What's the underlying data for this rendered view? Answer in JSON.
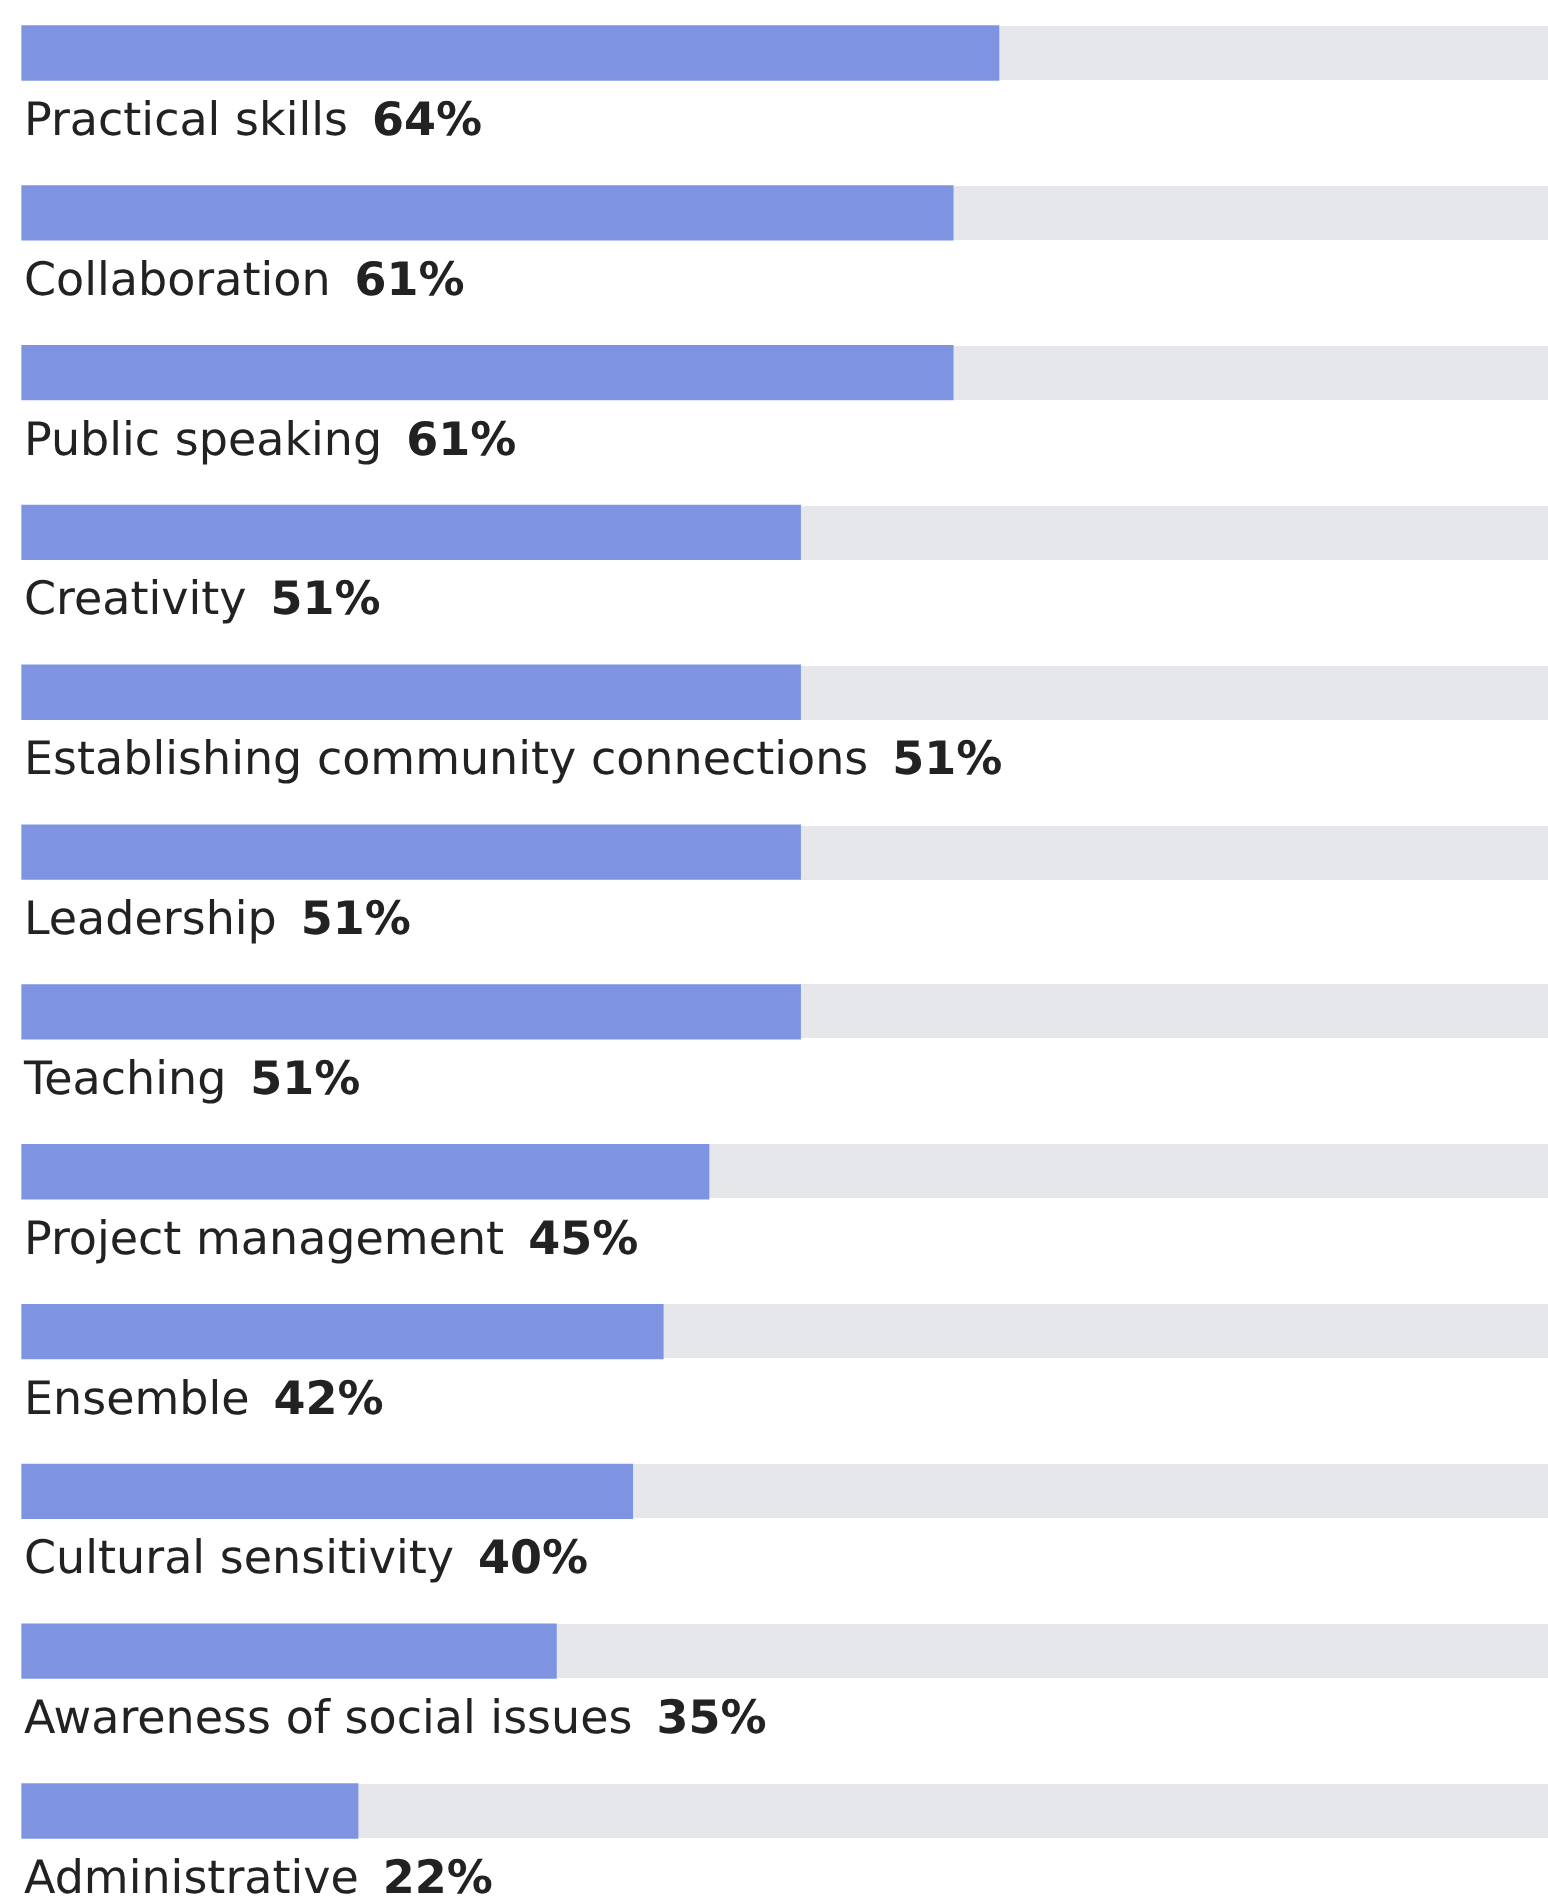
{
  "chart_data": {
    "type": "bar",
    "orientation": "horizontal",
    "categories": [
      "Practical skills",
      "Collaboration",
      "Public speaking",
      "Creativity",
      "Establishing community connections",
      "Leadership",
      "Teaching",
      "Project management",
      "Ensemble",
      "Cultural sensitivity",
      "Awareness of social issues",
      "Administrative"
    ],
    "values": [
      64,
      61,
      61,
      51,
      51,
      51,
      51,
      45,
      42,
      40,
      35,
      22
    ],
    "value_labels": [
      "64%",
      "61%",
      "61%",
      "51%",
      "51%",
      "51%",
      "51%",
      "45%",
      "42%",
      "40%",
      "35%",
      "22%"
    ],
    "color": "#7f94e0",
    "xlim": [
      0,
      100
    ],
    "tick_labels": false,
    "legend": false
  }
}
